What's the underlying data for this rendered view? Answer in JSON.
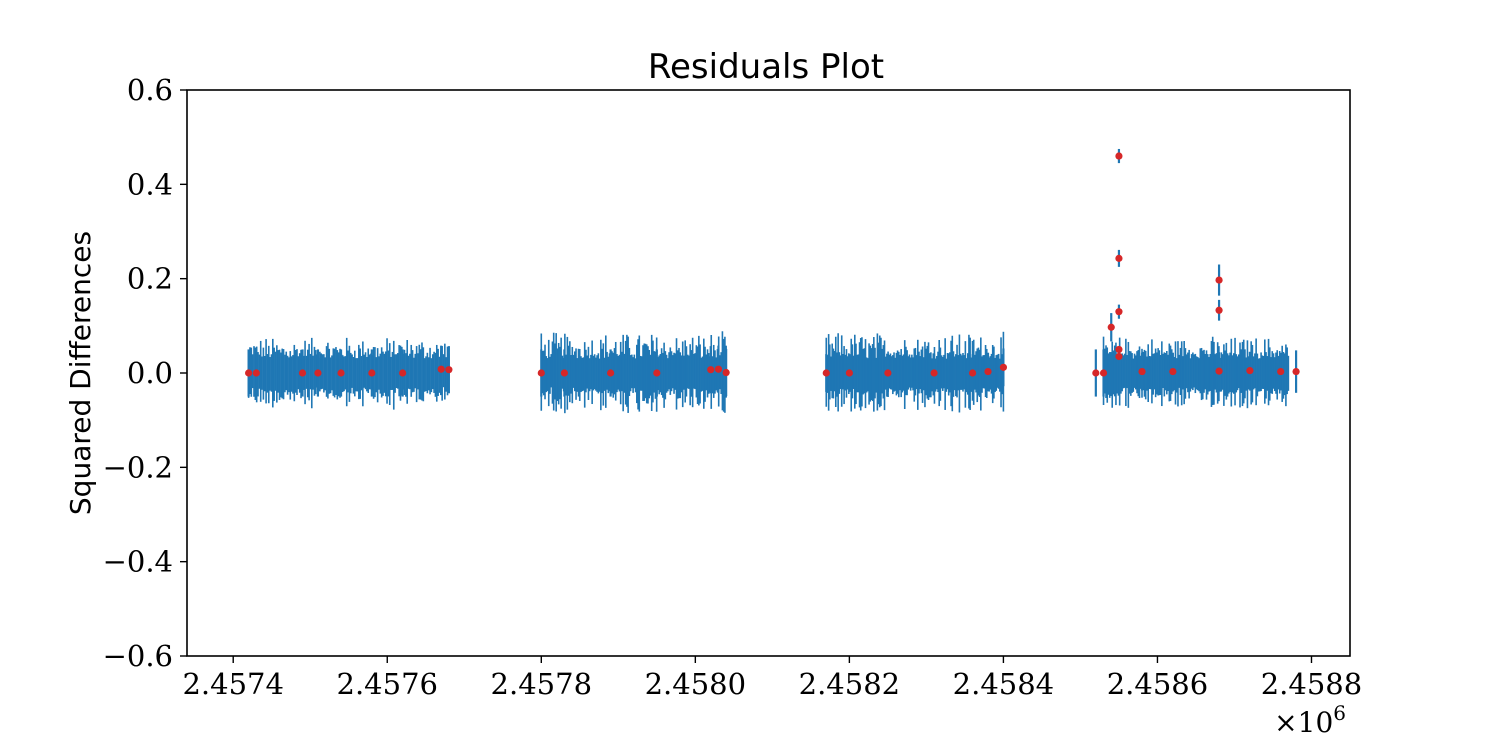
{
  "chart_data": {
    "type": "scatter",
    "title": "Residuals Plot",
    "xlabel": "",
    "ylabel": "Squared Differences",
    "x_offset_label": "×10^6",
    "x_offset_base": "×10",
    "x_offset_exp": "6",
    "xlim": [
      2.45734,
      2.45885
    ],
    "ylim": [
      -0.6,
      0.6
    ],
    "x_ticks": [
      2.4574,
      2.4576,
      2.4578,
      2.458,
      2.4582,
      2.4584,
      2.4586,
      2.4588
    ],
    "x_tick_labels": [
      "2.4574",
      "2.4576",
      "2.4578",
      "2.4580",
      "2.4582",
      "2.4584",
      "2.4586",
      "2.4588"
    ],
    "y_ticks": [
      -0.6,
      -0.4,
      -0.2,
      0.0,
      0.2,
      0.4,
      0.6
    ],
    "y_tick_labels": [
      "−0.6",
      "−0.4",
      "−0.2",
      "0.0",
      "0.2",
      "0.4",
      "0.6"
    ],
    "grid": false,
    "legend": "none",
    "colors": {
      "errorbar": "#1f77b4",
      "marker": "#d62728"
    },
    "clusters": [
      {
        "x_start": 2.45742,
        "x_end": 2.45768,
        "n": 150,
        "err_min": 0.035,
        "err_max": 0.075
      },
      {
        "x_start": 2.4578,
        "x_end": 2.45804,
        "n": 150,
        "err_min": 0.035,
        "err_max": 0.085
      },
      {
        "x_start": 2.45817,
        "x_end": 2.4584,
        "n": 150,
        "err_min": 0.035,
        "err_max": 0.085
      },
      {
        "x_start": 2.45853,
        "x_end": 2.45877,
        "n": 150,
        "err_min": 0.035,
        "err_max": 0.075
      }
    ],
    "series": [
      {
        "x": [
          2.45742,
          2.45743,
          2.45749,
          2.45751,
          2.45754,
          2.45758,
          2.45762,
          2.45767,
          2.45768,
          2.4578,
          2.45783,
          2.45789,
          2.45795,
          2.45802,
          2.45803,
          2.45804,
          2.45817,
          2.4582,
          2.45825,
          2.45831,
          2.45836,
          2.45838,
          2.4584,
          2.45852,
          2.45853,
          2.45854,
          2.45855,
          2.45855,
          2.45855,
          2.45855,
          2.45855,
          2.45858,
          2.45862,
          2.45868,
          2.45868,
          2.45868,
          2.45872,
          2.45876,
          2.45878
        ],
        "y": [
          0.0,
          0.0,
          0.0,
          0.0,
          0.0,
          0.0,
          0.0,
          0.008,
          0.007,
          0.0,
          0.0,
          0.0,
          0.0,
          0.007,
          0.008,
          0.001,
          0.0,
          0.0,
          0.0,
          0.0,
          0.0,
          0.003,
          0.012,
          0.0,
          0.0,
          0.097,
          0.46,
          0.243,
          0.13,
          0.05,
          0.035,
          0.003,
          0.003,
          0.197,
          0.133,
          0.004,
          0.005,
          0.003,
          0.003
        ],
        "err": [
          0.05,
          0.05,
          0.05,
          0.05,
          0.05,
          0.05,
          0.05,
          0.05,
          0.05,
          0.05,
          0.05,
          0.05,
          0.05,
          0.05,
          0.05,
          0.05,
          0.04,
          0.04,
          0.04,
          0.04,
          0.04,
          0.04,
          0.04,
          0.05,
          0.05,
          0.03,
          0.015,
          0.018,
          0.015,
          0.0,
          0.0,
          0.04,
          0.04,
          0.033,
          0.022,
          0.04,
          0.04,
          0.04,
          0.045
        ]
      }
    ]
  }
}
